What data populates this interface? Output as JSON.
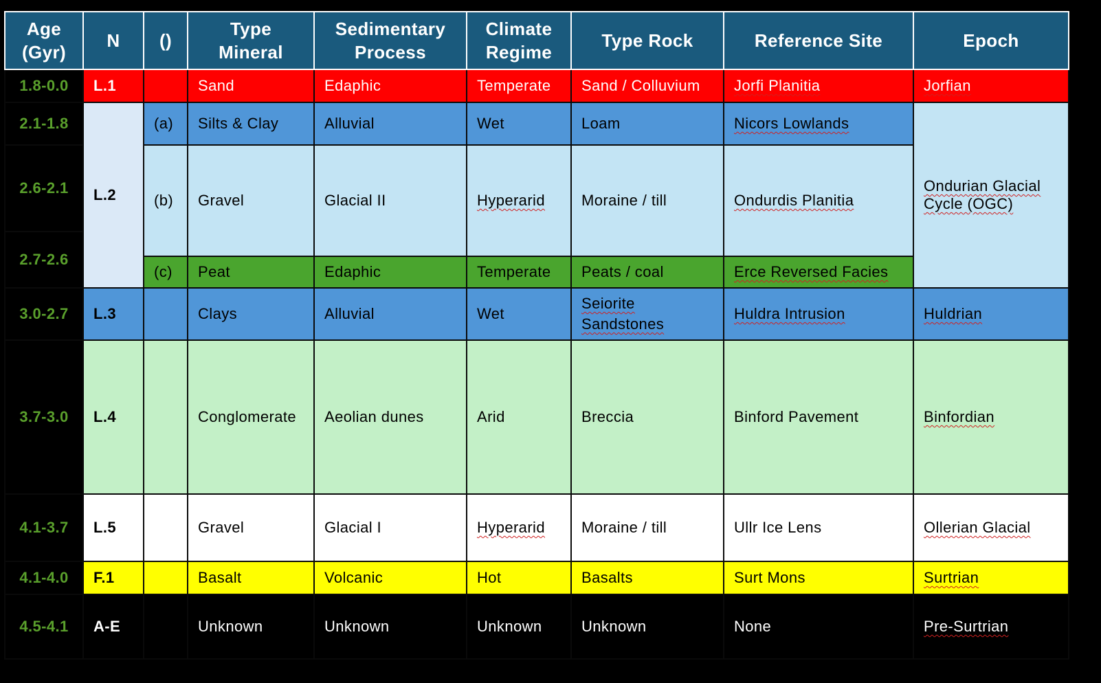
{
  "headers": {
    "age": "Age (Gyr)",
    "n": "N",
    "paren": "()",
    "mineral": "Type Mineral",
    "process": "Sedimentary Process",
    "climate": "Climate Regime",
    "rock": "Type Rock",
    "site": "Reference Site",
    "epoch": "Epoch"
  },
  "ages": [
    "1.8-0.0",
    "2.1-1.8",
    "2.6-2.1",
    "2.7-2.6",
    "3.0-2.7",
    "3.7-3.0",
    "4.1-3.7",
    "4.1-4.0",
    "4.5-4.1"
  ],
  "rows": {
    "l1": {
      "n": "L.1",
      "sub": "",
      "mineral": "Sand",
      "process": "Edaphic",
      "climate": "Temperate",
      "rock": "Sand / Colluvium",
      "site": "Jorfi Planitia",
      "epoch": "Jorfian"
    },
    "l2a": {
      "n": "L.2",
      "sub": "(a)",
      "mineral": "Silts & Clay",
      "process": "Alluvial",
      "climate": "Wet",
      "rock": "Loam",
      "site": "Nicors Lowlands",
      "epoch": "Ondurian Glacial Cycle (OGC)"
    },
    "l2b": {
      "sub": "(b)",
      "mineral": "Gravel",
      "process": "Glacial II",
      "climate": "Hyperarid",
      "rock": "Moraine / till",
      "site": "Ondurdis Planitia"
    },
    "l2c": {
      "sub": "(c)",
      "mineral": "Peat",
      "process": "Edaphic",
      "climate": "Temperate",
      "rock": "Peats / coal",
      "site": "Erce Reversed Facies"
    },
    "l3": {
      "n": "L.3",
      "sub": "",
      "mineral": "Clays",
      "process": "Alluvial",
      "climate": "Wet",
      "rock": "Seiorite Sandstones",
      "site": "Huldra Intrusion",
      "epoch": "Huldrian"
    },
    "l4": {
      "n": "L.4",
      "sub": "",
      "mineral": "Conglomerate",
      "process": "Aeolian dunes",
      "climate": "Arid",
      "rock": "Breccia",
      "site": "Binford Pavement",
      "epoch": "Binfordian"
    },
    "l5": {
      "n": "L.5",
      "sub": "",
      "mineral": "Gravel",
      "process": "Glacial I",
      "climate": "Hyperarid",
      "rock": "Moraine / till",
      "site": "Ullr Ice Lens",
      "epoch": "Ollerian Glacial"
    },
    "f1": {
      "n": "F.1",
      "sub": "",
      "mineral": "Basalt",
      "process": "Volcanic",
      "climate": "Hot",
      "rock": "Basalts",
      "site": "Surt Mons",
      "epoch": "Surtrian"
    },
    "ae": {
      "n": "A-E",
      "sub": "",
      "mineral": "Unknown",
      "process": "Unknown",
      "climate": "Unknown",
      "rock": "Unknown",
      "site": "None",
      "epoch": "Pre-Surtrian"
    }
  },
  "colors": {
    "header": "#1a5a7d",
    "age_text": "#5aa02c",
    "red": "#ff0000",
    "blue": "#5096d8",
    "light_blue": "#c3e4f4",
    "green": "#4aa52e",
    "mint": "#c3f0c7",
    "yellow": "#ffff00",
    "border": "#d8d400"
  }
}
